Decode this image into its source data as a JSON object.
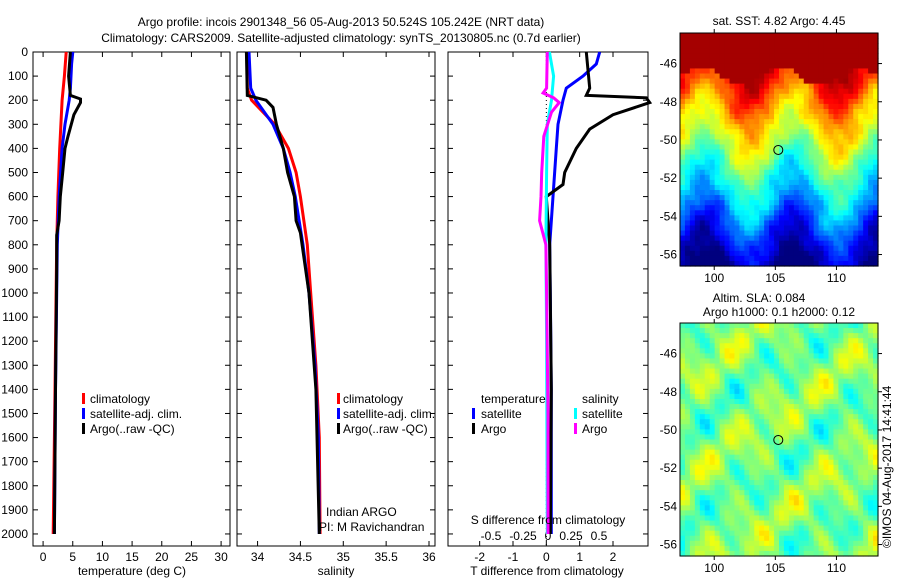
{
  "titles": {
    "line1": "Argo profile: incois 2901348_56 05-Aug-2013 50.524S 105.242E (NRT data)",
    "line2": "Climatology: CARS2009. Satellite-adjusted climatology: synTS_20130805.nc (0.7d earlier)"
  },
  "colors": {
    "climatology": "#ff0000",
    "satellite": "#0000ff",
    "argo": "#000000",
    "s_satellite": "#00ffff",
    "s_argo": "#ff00ff"
  },
  "depth_ticks": [
    "0",
    "100",
    "200",
    "300",
    "400",
    "500",
    "600",
    "700",
    "800",
    "900",
    "1000",
    "1100",
    "1200",
    "1300",
    "1400",
    "1500",
    "1600",
    "1700",
    "1800",
    "1900",
    "2000"
  ],
  "chart_data": [
    {
      "type": "line",
      "xlabel": "temperature (deg C)",
      "ylabel": "depth",
      "xlim": [
        -1.7,
        31.5
      ],
      "ylim": [
        2050,
        0
      ],
      "xticks": [
        "0",
        "5",
        "10",
        "15",
        "20",
        "25",
        "30"
      ],
      "legend": [
        "climatology",
        "satellite-adj. clim.",
        "Argo(..raw -QC)"
      ],
      "legend_position": "lower-right",
      "series": [
        {
          "name": "climatology",
          "depth": [
            0,
            100,
            200,
            300,
            400,
            600,
            800,
            1000,
            1400,
            2000
          ],
          "values": [
            3.9,
            3.6,
            3.2,
            3.0,
            2.8,
            2.5,
            2.3,
            2.2,
            2.0,
            1.7
          ]
        },
        {
          "name": "satellite-adj. clim.",
          "depth": [
            0,
            50,
            150,
            200,
            300,
            400,
            600,
            800,
            1000,
            1400,
            2000
          ],
          "values": [
            5.0,
            4.8,
            4.6,
            4.4,
            3.7,
            3.2,
            2.7,
            2.4,
            2.3,
            2.1,
            1.9
          ]
        },
        {
          "name": "Argo(..raw -QC)",
          "depth": [
            0,
            100,
            180,
            195,
            210,
            260,
            350,
            400,
            500,
            600,
            700,
            760,
            900,
            1400,
            2000
          ],
          "values": [
            4.6,
            4.3,
            4.6,
            6.3,
            6.3,
            5.2,
            4.2,
            3.7,
            3.3,
            2.9,
            2.7,
            2.3,
            2.3,
            2.1,
            1.9
          ]
        }
      ]
    },
    {
      "type": "line",
      "xlabel": "salinity",
      "xlim": [
        33.76,
        36.07
      ],
      "ylim": [
        2050,
        0
      ],
      "xticks": [
        "34",
        "34.5",
        "35",
        "35.5",
        "36"
      ],
      "legend": [
        "climatology",
        "satellite-adj. clim.",
        "Argo(..raw -QC)"
      ],
      "annotation": [
        "Indian ARGO",
        "PI: M Ravichandran"
      ],
      "series": [
        {
          "name": "climatology",
          "depth": [
            0,
            150,
            200,
            300,
            400,
            500,
            600,
            800,
            1000,
            1300,
            1600,
            2000
          ],
          "values": [
            33.88,
            33.88,
            33.93,
            34.2,
            34.36,
            34.45,
            34.5,
            34.58,
            34.62,
            34.68,
            34.72,
            34.73
          ]
        },
        {
          "name": "satellite-adj. clim.",
          "depth": [
            0,
            150,
            200,
            300,
            400,
            500,
            600,
            800,
            1000,
            1300,
            1600,
            2000
          ],
          "values": [
            33.9,
            33.92,
            33.98,
            34.18,
            34.3,
            34.38,
            34.44,
            34.53,
            34.6,
            34.67,
            34.71,
            34.72
          ]
        },
        {
          "name": "Argo(..raw -QC)",
          "depth": [
            0,
            180,
            200,
            230,
            300,
            400,
            500,
            600,
            700,
            750,
            800,
            1000,
            1400,
            2000
          ],
          "values": [
            33.87,
            33.88,
            34.1,
            34.18,
            34.22,
            34.3,
            34.35,
            34.43,
            34.45,
            34.5,
            34.52,
            34.6,
            34.68,
            34.72
          ]
        }
      ]
    },
    {
      "type": "line",
      "xlabel": "T difference from climatology",
      "xlim": [
        -2.95,
        3.05
      ],
      "ylim": [
        2050,
        0
      ],
      "xticks": [
        "-2",
        "-1",
        "0",
        "1",
        "2"
      ],
      "top_xlabel": "S difference from climatology",
      "top_xticks": [
        "-0.5",
        "-0.25",
        "0",
        "0.25",
        "0.5"
      ],
      "s_xlim": [
        -1.43,
        1.43
      ],
      "legend_headers": [
        "temperature",
        "salinity"
      ],
      "legend": [
        "satellite",
        "Argo",
        "satellite",
        "Argo"
      ],
      "series": [
        {
          "name": "T satellite",
          "var": "T",
          "depth": [
            0,
            50,
            100,
            150,
            200,
            300,
            400,
            600,
            800,
            1000,
            1400,
            2000
          ],
          "values": [
            1.6,
            1.5,
            1.1,
            0.6,
            0.5,
            0.35,
            0.3,
            0.2,
            0.1,
            0.12,
            0.15,
            0.15
          ]
        },
        {
          "name": "T Argo",
          "var": "T",
          "depth": [
            0,
            150,
            180,
            190,
            210,
            260,
            320,
            400,
            500,
            550,
            600,
            800,
            1400,
            2000
          ],
          "values": [
            1.2,
            1.3,
            1.2,
            3.0,
            3.1,
            2.0,
            1.3,
            0.9,
            0.55,
            0.5,
            0.0,
            0.1,
            0.15,
            0.12
          ]
        },
        {
          "name": "S satellite",
          "var": "S",
          "depth": [
            0,
            100,
            200,
            300,
            500,
            800,
            1200,
            2000
          ],
          "values": [
            0.02,
            0.08,
            0.05,
            -0.01,
            -0.02,
            -0.03,
            -0.02,
            -0.01
          ]
        },
        {
          "name": "S Argo",
          "var": "S",
          "depth": [
            0,
            150,
            170,
            190,
            210,
            250,
            350,
            500,
            600,
            700,
            800,
            1000,
            1500,
            2000
          ],
          "values": [
            -0.01,
            -0.02,
            -0.07,
            0.08,
            0.16,
            0.05,
            -0.06,
            -0.09,
            -0.1,
            -0.12,
            -0.03,
            -0.02,
            0.0,
            0.0
          ]
        }
      ]
    },
    {
      "type": "heatmap",
      "title": "sat. SST: 4.82 Argo: 4.45",
      "xticks": [
        "100",
        "105",
        "110"
      ],
      "yticks": [
        "-46",
        "-48",
        "-50",
        "-52",
        "-54",
        "-56"
      ],
      "xlim": [
        97.2,
        113.4
      ],
      "ylim": [
        -56.6,
        -44.4
      ],
      "marker": {
        "lon": 105.242,
        "lat": -50.524
      }
    },
    {
      "type": "heatmap",
      "title1": "Altim. SLA: 0.084",
      "title2": "Argo h1000: 0.1 h2000: 0.12",
      "xticks": [
        "100",
        "105",
        "110"
      ],
      "yticks": [
        "-46",
        "-48",
        "-50",
        "-52",
        "-54",
        "-56"
      ],
      "xlim": [
        97.2,
        113.4
      ],
      "ylim": [
        -56.6,
        -44.4
      ],
      "marker": {
        "lon": 105.242,
        "lat": -50.524
      }
    }
  ],
  "credit": "©IMOS 04-Aug-2017 14:41:44"
}
